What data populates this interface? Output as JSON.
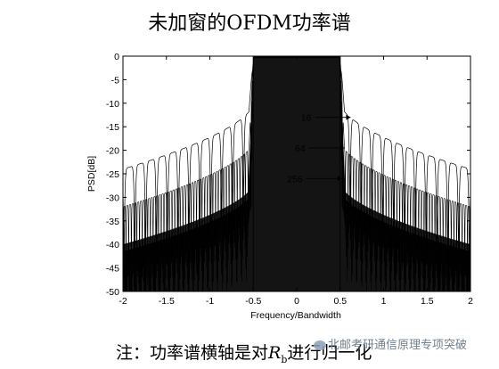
{
  "chart_data": {
    "type": "line",
    "title": "未加窗的OFDM功率谱",
    "xlabel": "Frequency/Bandwidth",
    "ylabel": "PSD[dB]",
    "xlim": [
      -2,
      2
    ],
    "ylim": [
      -50,
      0
    ],
    "xticks": [
      "-2",
      "-1.5",
      "-1",
      "-0.5",
      "0",
      "0.5",
      "1",
      "1.5",
      "2"
    ],
    "yticks": [
      "0",
      "-5",
      "-10",
      "-15",
      "-20",
      "-25",
      "-30",
      "-35",
      "-40",
      "-45",
      "-50"
    ],
    "grid": false,
    "series": [
      {
        "name": "16",
        "subcarriers": 16,
        "passband_edge": 0.5,
        "sidelobe_level_at_edge": -10,
        "sidelobe_level_at_2": -24
      },
      {
        "name": "64",
        "subcarriers": 64,
        "passband_edge": 0.5,
        "sidelobe_level_at_edge": -18,
        "sidelobe_level_at_2": -32
      },
      {
        "name": "256",
        "subcarriers": 256,
        "passband_edge": 0.5,
        "sidelobe_level_at_edge": -27,
        "sidelobe_level_at_2": -40
      }
    ],
    "annotations": [
      {
        "text": "16",
        "x": 0.62,
        "y": -13
      },
      {
        "text": "64",
        "x": 0.55,
        "y": -19.5
      },
      {
        "text": "256",
        "x": 0.52,
        "y": -26
      }
    ]
  },
  "footnote": {
    "prefix": "注：功率谱横轴是对",
    "symbol": "R",
    "subscript": "b",
    "suffix": "进行归一化"
  },
  "watermark": {
    "text": "北邮考研通信原理专项突破",
    "icon": "wechat-icon"
  }
}
